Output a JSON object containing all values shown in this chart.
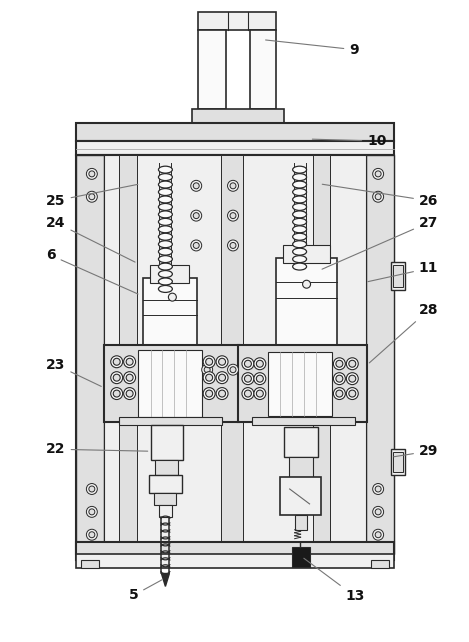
{
  "figsize": [
    4.69,
    6.42
  ],
  "dpi": 100,
  "bg_color": "#ffffff",
  "lc": "#2a2a2a",
  "fc_light": "#f0f0f0",
  "fc_mid": "#e0e0e0",
  "fc_dark": "#c8c8c8",
  "fc_white": "#fafafa",
  "fc_black": "#333333"
}
